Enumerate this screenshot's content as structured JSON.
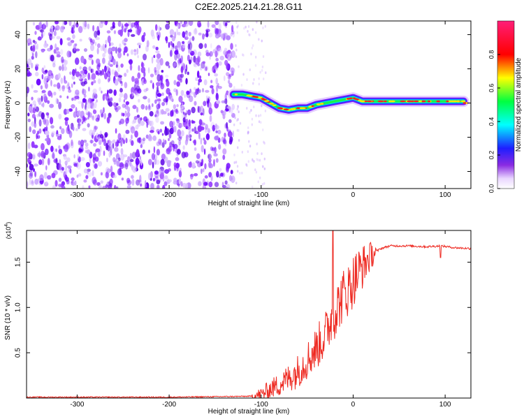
{
  "title": "C2E2.2025.214.21.28.G11",
  "colors": {
    "snr_line": "#ee2a22",
    "axis": "#000000"
  },
  "chart_data": [
    {
      "type": "heatmap",
      "xlabel": "Height of straight line (km)",
      "ylabel": "Frequency (Hz)",
      "xlim": [
        -355,
        128
      ],
      "ylim": [
        -50,
        48
      ],
      "xticks": [
        -300,
        -200,
        -100,
        0,
        100
      ],
      "yticks": [
        -40,
        -20,
        0,
        20,
        40
      ],
      "colorbar": {
        "label": "Normalized spectral amplitude",
        "range": [
          0,
          1
        ],
        "ticks": [
          0.0,
          0.2,
          0.4,
          0.6,
          0.8
        ],
        "colormap": "rainbow (white-violet-blue-cyan-green-yellow-red-pink)"
      },
      "series": [
        {
          "x": [
            -130,
            -120,
            -110,
            -100,
            -90,
            -80,
            -70,
            -60,
            -50,
            -40,
            -30,
            -20,
            -10,
            0,
            10,
            20,
            40,
            60,
            80,
            100,
            120
          ],
          "y": [
            5,
            5,
            4,
            3,
            0,
            -3,
            -4,
            -3,
            -3,
            -1,
            0,
            1,
            2,
            3,
            1,
            1,
            1,
            1,
            1,
            1,
            1
          ]
        }
      ],
      "grid": false
    },
    {
      "type": "line",
      "xlabel": "Height of straight line (km)",
      "ylabel": "SNR (10 * v/v)",
      "y_multiplier": "(x10",
      "y_multiplier_exp": "4",
      "y_multiplier_close": ")",
      "xlim": [
        -355,
        128
      ],
      "ylim": [
        0,
        1.85
      ],
      "xticks": [
        -300,
        -200,
        -100,
        0,
        100
      ],
      "yticks": [
        0.5,
        1.0,
        1.5
      ],
      "series": [
        {
          "x": [
            -355,
            -300,
            -200,
            -110,
            -100,
            -90,
            -80,
            -70,
            -60,
            -50,
            -40,
            -30,
            -25,
            -20,
            -15,
            -10,
            -5,
            0,
            10,
            20,
            30,
            40,
            60,
            80,
            95,
            110,
            128
          ],
          "y": [
            0.01,
            0.01,
            0.01,
            0.02,
            0.04,
            0.1,
            0.15,
            0.22,
            0.3,
            0.42,
            0.55,
            0.7,
            0.85,
            0.95,
            1.05,
            1.15,
            1.2,
            1.3,
            1.45,
            1.58,
            1.65,
            1.68,
            1.68,
            1.67,
            1.68,
            1.66,
            1.65
          ]
        }
      ],
      "annotations": [
        {
          "x": -22,
          "y": 1.85,
          "note": "spike"
        },
        {
          "x": 95,
          "y": 1.55,
          "note": "dip"
        }
      ],
      "grid": false
    }
  ]
}
